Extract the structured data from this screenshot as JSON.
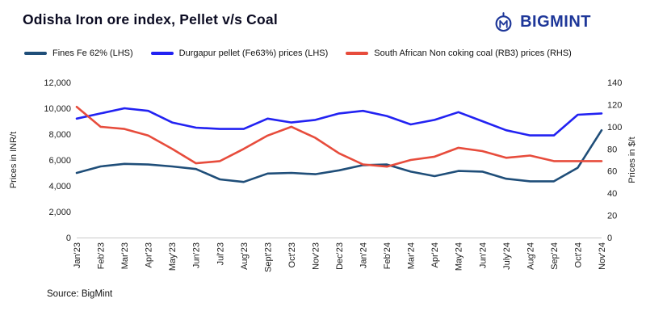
{
  "page": {
    "title": "Odisha Iron ore index, Pellet v/s Coal",
    "source": "Source: BigMint"
  },
  "logo": {
    "text": "BIGMINT",
    "color": "#1e3799"
  },
  "chart_data": {
    "type": "line",
    "title": "Odisha Iron ore index, Pellet v/s Coal",
    "grid": false,
    "legend_position": "top",
    "categories": [
      "Jan'23",
      "Feb'23",
      "Mar'23",
      "Apr'23",
      "May'23",
      "Jun'23",
      "Jul'23",
      "Aug'23",
      "Sept'23",
      "Oct'23",
      "Nov'23",
      "Dec'23",
      "Jan'24",
      "Feb'24",
      "Mar'24",
      "Apr'24",
      "May'24",
      "Jun'24",
      "July'24",
      "Aug'24",
      "Sep'24",
      "Oct'24",
      "Nov'24"
    ],
    "left_axis": {
      "label": "Prices in INR/t",
      "min": 0,
      "max": 12000,
      "step": 2000
    },
    "right_axis": {
      "label": "Prices in $/t",
      "min": 0,
      "max": 140,
      "step": 20
    },
    "series": [
      {
        "name": "Fines Fe 62% (LHS)",
        "axis": "left",
        "color": "#1f4e79",
        "values": [
          5000,
          5500,
          5700,
          5650,
          5500,
          5300,
          4500,
          4300,
          4950,
          5000,
          4900,
          5200,
          5600,
          5650,
          5100,
          4750,
          5150,
          5100,
          4550,
          4350,
          4350,
          5400,
          8300
        ]
      },
      {
        "name": "Durgapur pellet (Fe63%) prices (LHS)",
        "axis": "left",
        "color": "#2222f2",
        "values": [
          9200,
          9600,
          10000,
          9800,
          8900,
          8500,
          8400,
          8400,
          9200,
          8900,
          9100,
          9600,
          9800,
          9400,
          8750,
          9100,
          9700,
          9000,
          8300,
          7900,
          7900,
          9500,
          9600
        ]
      },
      {
        "name": "South African Non coking coal (RB3) prices (RHS)",
        "axis": "right",
        "color": "#e74c3c",
        "values": [
          118,
          100,
          98,
          92,
          80,
          67,
          69,
          80,
          92,
          100,
          90,
          76,
          66,
          64,
          70,
          73,
          81,
          78,
          72,
          74,
          69,
          69,
          69
        ]
      }
    ]
  }
}
